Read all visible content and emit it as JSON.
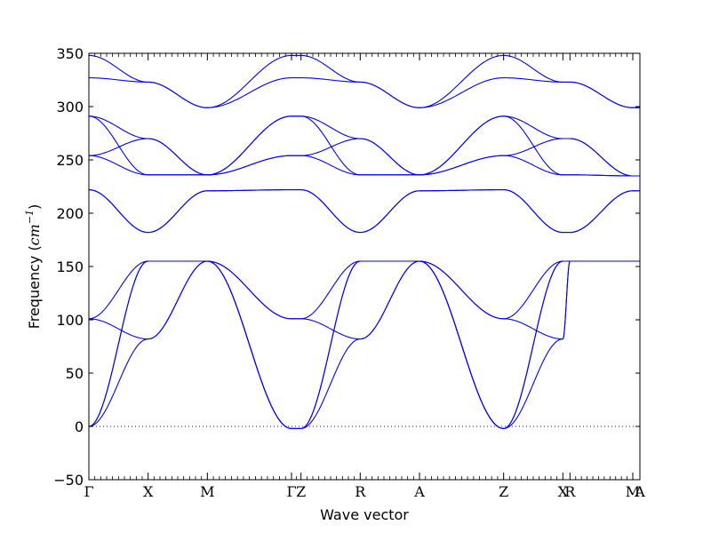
{
  "chart_data": {
    "type": "line",
    "title": "",
    "xlabel": "Wave vector",
    "ylabel_prefix": "Frequency (",
    "ylabel_math": "cm",
    "ylabel_exp": "−1",
    "ylabel_suffix": ")",
    "ylim": [
      -50,
      350
    ],
    "yticks": [
      -50,
      0,
      50,
      100,
      150,
      200,
      250,
      300,
      350
    ],
    "ytick_labels": [
      "−50",
      "0",
      "50",
      "100",
      "150",
      "200",
      "250",
      "300",
      "350"
    ],
    "xlim": [
      0,
      9.3
    ],
    "high_symmetry_points": [
      {
        "label": "Γ",
        "x": 0
      },
      {
        "label": "X",
        "x": 1
      },
      {
        "label": "M",
        "x": 2
      },
      {
        "label": "Γ",
        "x": 3.42
      },
      {
        "label": "Z",
        "x": 3.58
      },
      {
        "label": "R",
        "x": 4.58
      },
      {
        "label": "A",
        "x": 5.58
      },
      {
        "label": "Z",
        "x": 7.0
      },
      {
        "label": "X",
        "x": 8.0
      },
      {
        "label": "R",
        "x": 8.12
      },
      {
        "label": "M",
        "x": 9.18
      },
      {
        "label": "A",
        "x": 9.3
      }
    ],
    "zero_line": {
      "y": 0,
      "style": "dotted"
    },
    "line_color": "#0000ff",
    "series": [
      {
        "x": [
          0,
          1,
          2,
          3.42,
          3.58,
          4.58,
          5.58,
          7.0,
          8.0,
          8.12,
          9.18,
          9.3
        ],
        "y": [
          0,
          82,
          155,
          -2,
          -2,
          82,
          155,
          -2,
          82,
          155,
          155,
          155
        ]
      },
      {
        "x": [
          0,
          1,
          2,
          3.42,
          3.58,
          4.58,
          5.58,
          7.0,
          8.0,
          8.12,
          9.18,
          9.3
        ],
        "y": [
          0,
          155,
          155,
          -2,
          -2,
          155,
          155,
          -2,
          155,
          155,
          155,
          155
        ]
      },
      {
        "x": [
          0,
          1,
          2,
          3.42,
          3.58,
          4.58,
          5.58,
          7.0,
          8.0,
          8.12,
          9.18,
          9.3
        ],
        "y": [
          0,
          155,
          155,
          -2,
          -2,
          155,
          155,
          -2,
          155,
          155,
          155,
          155
        ]
      },
      {
        "x": [
          0,
          1,
          2,
          3.42,
          3.58,
          4.58,
          5.58,
          7.0,
          8.0,
          8.12,
          9.18,
          9.3
        ],
        "y": [
          101,
          82,
          155,
          101,
          101,
          82,
          155,
          101,
          82,
          155,
          155,
          155
        ]
      },
      {
        "x": [
          0,
          1,
          2,
          3.42,
          3.58,
          4.58,
          5.58,
          7.0,
          8.0,
          8.12,
          9.18,
          9.3
        ],
        "y": [
          101,
          155,
          155,
          101,
          101,
          155,
          155,
          101,
          155,
          155,
          155,
          155
        ]
      },
      {
        "x": [
          0,
          1,
          2,
          3.42,
          3.58,
          4.58,
          5.58,
          7.0,
          8.0,
          8.12,
          9.18,
          9.3
        ],
        "y": [
          222,
          182,
          221,
          222,
          222,
          182,
          221,
          222,
          182,
          182,
          221,
          221
        ]
      },
      {
        "x": [
          0,
          1,
          2,
          3.42,
          3.58,
          4.58,
          5.58,
          7.0,
          8.0,
          8.12,
          9.18,
          9.3
        ],
        "y": [
          222,
          182,
          221,
          222,
          222,
          182,
          221,
          222,
          182,
          182,
          221,
          221
        ]
      },
      {
        "x": [
          0,
          1,
          2,
          3.42,
          3.58,
          4.58,
          5.58,
          7.0,
          8.0,
          8.12,
          9.18,
          9.3
        ],
        "y": [
          254,
          236,
          236,
          254,
          254,
          236,
          236,
          254,
          236,
          236,
          235,
          235
        ]
      },
      {
        "x": [
          0,
          1,
          2,
          3.42,
          3.58,
          4.58,
          5.58,
          7.0,
          8.0,
          8.12,
          9.18,
          9.3
        ],
        "y": [
          254,
          270,
          236,
          254,
          254,
          270,
          236,
          254,
          270,
          270,
          235,
          235
        ]
      },
      {
        "x": [
          0,
          1,
          2,
          3.42,
          3.58,
          4.58,
          5.58,
          7.0,
          8.0,
          8.12,
          9.18,
          9.3
        ],
        "y": [
          291,
          236,
          236,
          291,
          291,
          236,
          236,
          291,
          236,
          236,
          235,
          235
        ]
      },
      {
        "x": [
          0,
          1,
          2,
          3.42,
          3.58,
          4.58,
          5.58,
          7.0,
          8.0,
          8.12,
          9.18,
          9.3
        ],
        "y": [
          291,
          270,
          236,
          291,
          291,
          270,
          236,
          291,
          270,
          270,
          235,
          235
        ]
      },
      {
        "x": [
          0,
          1,
          2,
          3.42,
          3.58,
          4.58,
          5.58,
          7.0,
          8.0,
          8.12,
          9.18,
          9.3
        ],
        "y": [
          327,
          323,
          299,
          327,
          327,
          323,
          299,
          327,
          323,
          323,
          299,
          299
        ]
      },
      {
        "x": [
          0,
          1,
          2,
          3.42,
          3.58,
          4.58,
          5.58,
          7.0,
          8.0,
          8.12,
          9.18,
          9.3
        ],
        "y": [
          348,
          323,
          299,
          348,
          348,
          323,
          299,
          348,
          323,
          323,
          299,
          299
        ]
      }
    ]
  }
}
